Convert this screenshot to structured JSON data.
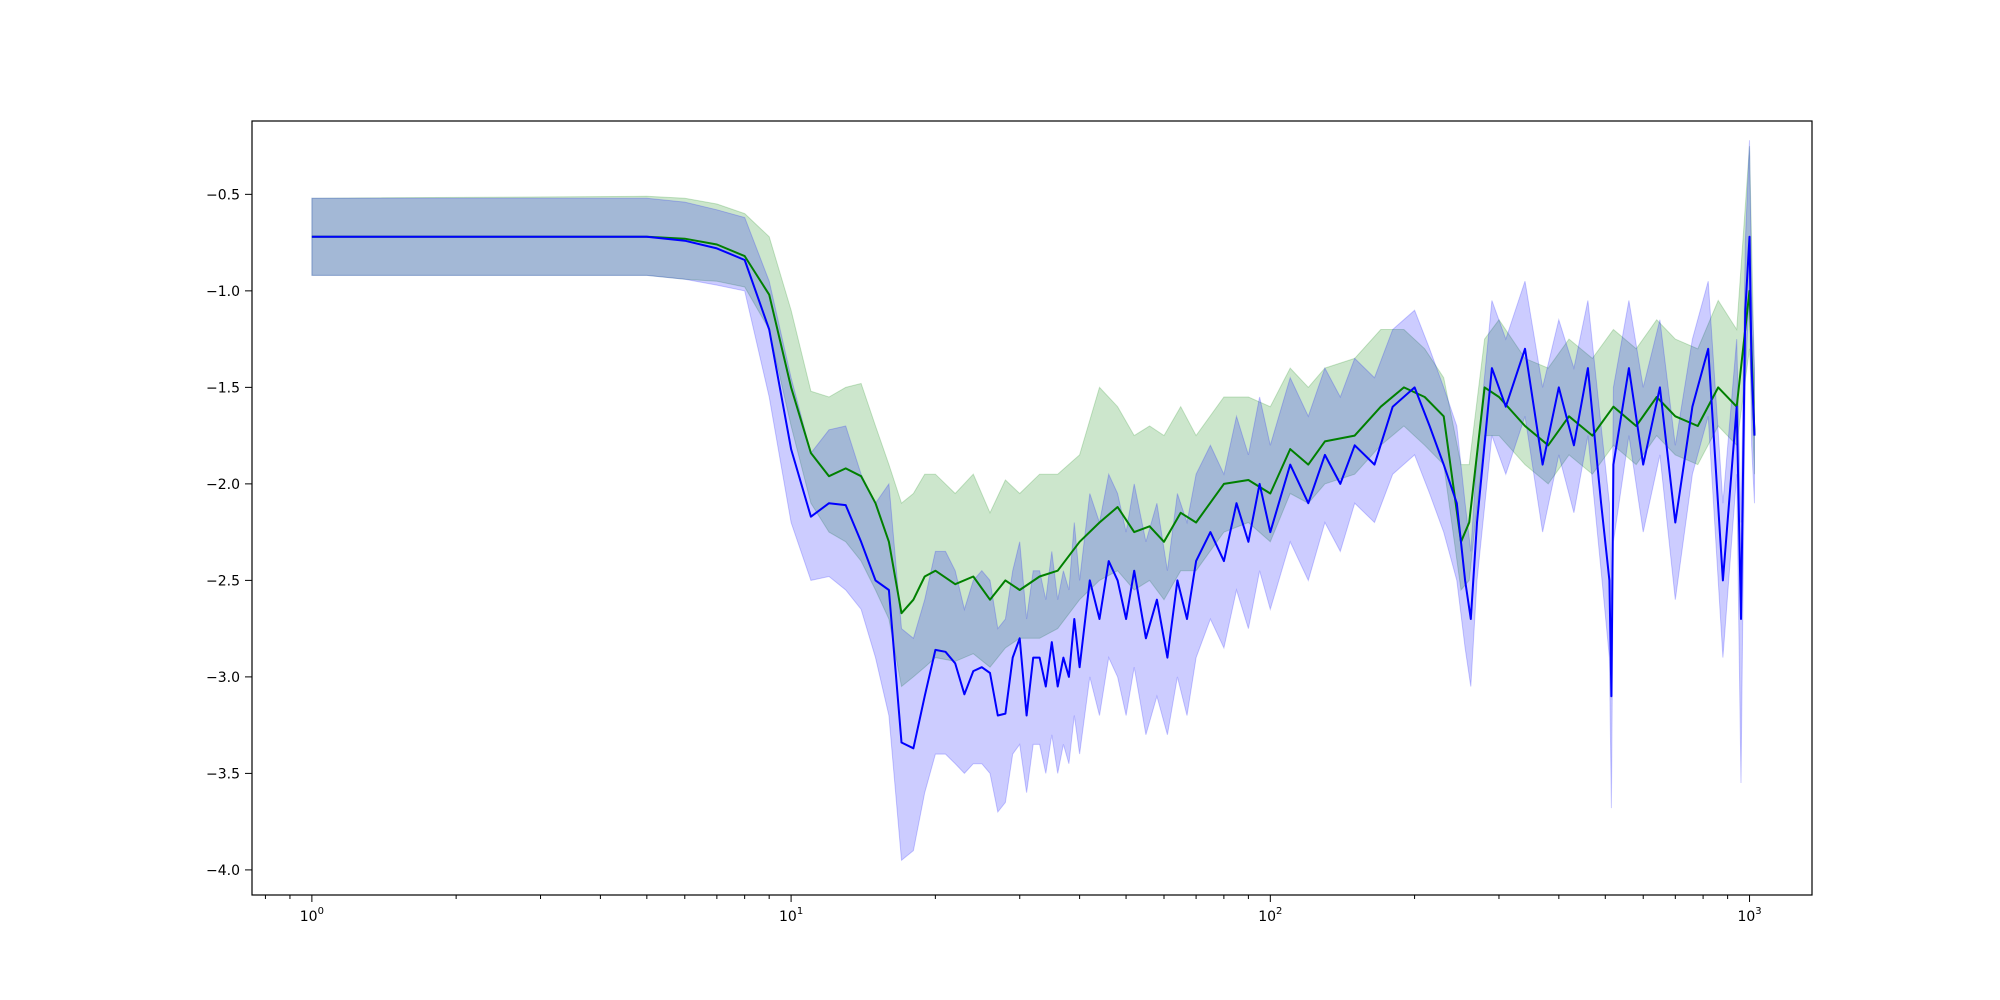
{
  "colors": {
    "series_a": "#008000",
    "series_b": "#0000ff",
    "band_a_fill": "rgba(0,128,0,0.2)",
    "band_b_fill": "rgba(0,0,255,0.2)"
  },
  "chart_data": {
    "type": "line",
    "title": "",
    "xlabel": "",
    "ylabel": "",
    "xscale": "log",
    "xlim": [
      0.75,
      1350
    ],
    "ylim": [
      -4.13,
      -0.12
    ],
    "grid": false,
    "legend": "none",
    "x_ticks": [
      {
        "value": 1,
        "base": "10",
        "exp": "0"
      },
      {
        "value": 10,
        "base": "10",
        "exp": "1"
      },
      {
        "value": 100,
        "base": "10",
        "exp": "2"
      },
      {
        "value": 1000,
        "base": "10",
        "exp": "3"
      }
    ],
    "y_ticks": [
      {
        "value": -0.5,
        "label": "−0.5"
      },
      {
        "value": -1.0,
        "label": "−1.0"
      },
      {
        "value": -1.5,
        "label": "−1.5"
      },
      {
        "value": -2.0,
        "label": "−2.0"
      },
      {
        "value": -2.5,
        "label": "−2.5"
      },
      {
        "value": -3.0,
        "label": "−3.0"
      },
      {
        "value": -3.5,
        "label": "−3.5"
      },
      {
        "value": -4.0,
        "label": "−4.0"
      }
    ],
    "series": [
      {
        "color": "#008000",
        "band": "rgba(0,128,0,0.2)",
        "x": [
          1,
          5,
          6,
          7,
          8,
          9,
          10,
          11,
          12,
          13,
          14,
          15,
          16,
          17,
          18,
          19,
          20,
          22,
          24,
          26,
          28,
          30,
          33,
          36,
          40,
          44,
          48,
          52,
          56,
          60,
          65,
          70,
          80,
          90,
          100,
          110,
          120,
          130,
          150,
          170,
          190,
          210,
          230,
          250,
          260,
          280,
          300,
          340,
          380,
          420,
          470,
          520,
          580,
          640,
          700,
          780,
          860,
          940,
          1000,
          1024
        ],
        "y": [
          -0.72,
          -0.72,
          -0.73,
          -0.76,
          -0.82,
          -1.02,
          -1.5,
          -1.84,
          -1.96,
          -1.92,
          -1.96,
          -2.1,
          -2.3,
          -2.67,
          -2.6,
          -2.48,
          -2.45,
          -2.52,
          -2.48,
          -2.6,
          -2.5,
          -2.55,
          -2.48,
          -2.45,
          -2.3,
          -2.2,
          -2.12,
          -2.25,
          -2.22,
          -2.3,
          -2.15,
          -2.2,
          -2.0,
          -1.98,
          -2.05,
          -1.82,
          -1.9,
          -1.78,
          -1.75,
          -1.6,
          -1.5,
          -1.55,
          -1.65,
          -2.3,
          -2.2,
          -1.5,
          -1.55,
          -1.7,
          -1.8,
          -1.65,
          -1.75,
          -1.6,
          -1.7,
          -1.55,
          -1.65,
          -1.7,
          -1.5,
          -1.6,
          -1.0,
          -1.75
        ],
        "lower": [
          -0.92,
          -0.92,
          -0.94,
          -0.95,
          -0.98,
          -1.2,
          -1.7,
          -2.1,
          -2.25,
          -2.3,
          -2.4,
          -2.55,
          -2.7,
          -3.05,
          -3.0,
          -2.95,
          -2.9,
          -2.92,
          -2.88,
          -2.95,
          -2.85,
          -2.8,
          -2.8,
          -2.75,
          -2.6,
          -2.5,
          -2.45,
          -2.55,
          -2.5,
          -2.6,
          -2.45,
          -2.45,
          -2.25,
          -2.2,
          -2.3,
          -2.05,
          -2.1,
          -2.0,
          -1.95,
          -1.8,
          -1.7,
          -1.8,
          -1.9,
          -2.55,
          -2.5,
          -1.75,
          -1.75,
          -1.9,
          -2.0,
          -1.85,
          -1.95,
          -1.8,
          -1.9,
          -1.75,
          -1.85,
          -1.9,
          -1.7,
          -1.8,
          -1.3,
          -1.95
        ],
        "upper": [
          -0.52,
          -0.51,
          -0.52,
          -0.55,
          -0.6,
          -0.72,
          -1.1,
          -1.52,
          -1.55,
          -1.5,
          -1.48,
          -1.7,
          -1.9,
          -2.1,
          -2.05,
          -1.95,
          -1.95,
          -2.05,
          -1.95,
          -2.15,
          -1.98,
          -2.05,
          -1.95,
          -1.95,
          -1.85,
          -1.5,
          -1.6,
          -1.75,
          -1.7,
          -1.75,
          -1.6,
          -1.75,
          -1.55,
          -1.55,
          -1.6,
          -1.4,
          -1.5,
          -1.4,
          -1.35,
          -1.2,
          -1.2,
          -1.3,
          -1.45,
          -1.9,
          -1.9,
          -1.25,
          -1.15,
          -1.35,
          -1.4,
          -1.25,
          -1.35,
          -1.2,
          -1.3,
          -1.15,
          -1.25,
          -1.3,
          -1.05,
          -1.2,
          -0.25,
          -1.45
        ]
      },
      {
        "color": "#0000ff",
        "band": "rgba(0,0,255,0.2)",
        "x": [
          1,
          5,
          6,
          7,
          8,
          9,
          10,
          11,
          12,
          13,
          14,
          15,
          16,
          17,
          18,
          19,
          20,
          21,
          22,
          23,
          24,
          25,
          26,
          27,
          28,
          29,
          30,
          31,
          32,
          33,
          34,
          35,
          36,
          37,
          38,
          39,
          40,
          42,
          44,
          46,
          48,
          50,
          52,
          55,
          58,
          61,
          64,
          67,
          70,
          75,
          80,
          85,
          90,
          95,
          100,
          110,
          120,
          130,
          140,
          150,
          165,
          180,
          200,
          215,
          230,
          245,
          255,
          262,
          270,
          290,
          310,
          340,
          370,
          400,
          430,
          460,
          490,
          510,
          515,
          520,
          560,
          600,
          650,
          700,
          760,
          820,
          880,
          940,
          960,
          980,
          1000,
          1010,
          1024
        ],
        "y": [
          -0.72,
          -0.72,
          -0.74,
          -0.78,
          -0.84,
          -1.2,
          -1.82,
          -2.17,
          -2.1,
          -2.11,
          -2.3,
          -2.5,
          -2.55,
          -3.34,
          -3.37,
          -3.1,
          -2.86,
          -2.87,
          -2.93,
          -3.09,
          -2.97,
          -2.95,
          -2.98,
          -3.2,
          -3.19,
          -2.9,
          -2.8,
          -3.2,
          -2.9,
          -2.9,
          -3.05,
          -2.82,
          -3.05,
          -2.9,
          -3.0,
          -2.7,
          -2.95,
          -2.5,
          -2.7,
          -2.4,
          -2.5,
          -2.7,
          -2.45,
          -2.8,
          -2.6,
          -2.9,
          -2.5,
          -2.7,
          -2.4,
          -2.25,
          -2.4,
          -2.1,
          -2.3,
          -2.0,
          -2.25,
          -1.9,
          -2.1,
          -1.85,
          -2.0,
          -1.8,
          -1.9,
          -1.6,
          -1.5,
          -1.7,
          -1.9,
          -2.1,
          -2.5,
          -2.7,
          -2.2,
          -1.4,
          -1.6,
          -1.3,
          -1.9,
          -1.5,
          -1.8,
          -1.4,
          -2.1,
          -2.5,
          -3.1,
          -1.9,
          -1.4,
          -1.9,
          -1.5,
          -2.2,
          -1.6,
          -1.3,
          -2.5,
          -1.6,
          -2.7,
          -1.1,
          -0.72,
          -1.4,
          -1.75
        ],
        "lower": [
          -0.92,
          -0.92,
          -0.94,
          -0.97,
          -1.0,
          -1.55,
          -2.2,
          -2.5,
          -2.48,
          -2.55,
          -2.65,
          -2.9,
          -3.2,
          -3.95,
          -3.9,
          -3.6,
          -3.4,
          -3.4,
          -3.45,
          -3.5,
          -3.45,
          -3.45,
          -3.5,
          -3.7,
          -3.65,
          -3.4,
          -3.35,
          -3.6,
          -3.35,
          -3.35,
          -3.5,
          -3.3,
          -3.5,
          -3.35,
          -3.45,
          -3.2,
          -3.4,
          -3.0,
          -3.2,
          -2.9,
          -3.0,
          -3.2,
          -2.95,
          -3.3,
          -3.1,
          -3.3,
          -3.0,
          -3.2,
          -2.9,
          -2.7,
          -2.85,
          -2.55,
          -2.75,
          -2.45,
          -2.65,
          -2.3,
          -2.5,
          -2.2,
          -2.35,
          -2.1,
          -2.2,
          -1.95,
          -1.85,
          -2.05,
          -2.25,
          -2.5,
          -2.85,
          -3.05,
          -2.5,
          -1.75,
          -1.95,
          -1.65,
          -2.25,
          -1.85,
          -2.15,
          -1.75,
          -2.45,
          -2.9,
          -3.68,
          -2.3,
          -1.75,
          -2.25,
          -1.85,
          -2.6,
          -1.95,
          -1.65,
          -2.9,
          -1.95,
          -3.55,
          -1.45,
          -1.0,
          -1.8,
          -2.1
        ],
        "upper": [
          -0.52,
          -0.52,
          -0.54,
          -0.58,
          -0.62,
          -0.95,
          -1.45,
          -1.84,
          -1.72,
          -1.7,
          -1.95,
          -2.1,
          -2.0,
          -2.75,
          -2.8,
          -2.6,
          -2.35,
          -2.35,
          -2.45,
          -2.65,
          -2.5,
          -2.45,
          -2.5,
          -2.75,
          -2.7,
          -2.45,
          -2.3,
          -2.7,
          -2.45,
          -2.45,
          -2.6,
          -2.35,
          -2.6,
          -2.45,
          -2.55,
          -2.2,
          -2.5,
          -2.05,
          -2.2,
          -1.95,
          -2.05,
          -2.25,
          -2.0,
          -2.3,
          -2.1,
          -2.45,
          -2.05,
          -2.2,
          -1.95,
          -1.8,
          -1.95,
          -1.65,
          -1.85,
          -1.55,
          -1.8,
          -1.45,
          -1.65,
          -1.4,
          -1.55,
          -1.35,
          -1.45,
          -1.2,
          -1.1,
          -1.3,
          -1.5,
          -1.7,
          -2.1,
          -2.35,
          -1.85,
          -1.05,
          -1.25,
          -0.95,
          -1.5,
          -1.15,
          -1.4,
          -1.05,
          -1.7,
          -2.1,
          -2.6,
          -1.5,
          -1.05,
          -1.5,
          -1.15,
          -1.8,
          -1.25,
          -0.95,
          -2.1,
          -1.25,
          -2.2,
          -0.75,
          -0.22,
          -1.0,
          -1.4
        ]
      }
    ]
  }
}
